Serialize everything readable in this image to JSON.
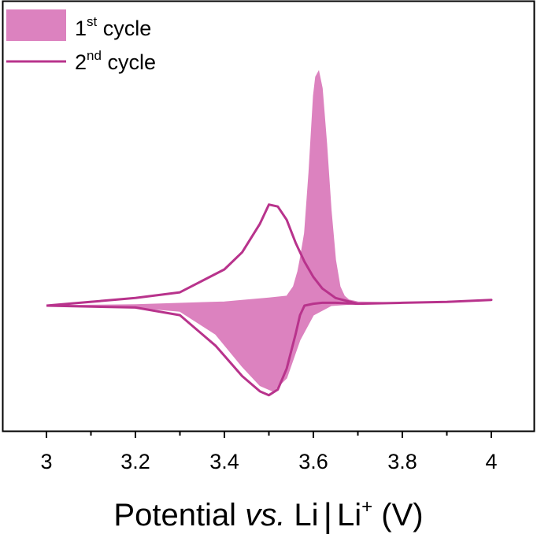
{
  "chart_data": {
    "type": "line",
    "title": "",
    "xlabel": {
      "prefix": "Potential ",
      "italic": "vs.",
      "middle": " Li",
      "suffix_base": "Li",
      "suffix_sup": "+",
      "suffix_end": " (V)"
    },
    "ylabel": "",
    "xlim": [
      3,
      4
    ],
    "ylim": [
      -1.0,
      1.0
    ],
    "grid": false,
    "legend_position": "top-left",
    "x_ticks": [
      "3",
      "3.2",
      "3.4",
      "3.6",
      "3.8",
      "4"
    ],
    "x_tick_values": [
      3,
      3.2,
      3.4,
      3.6,
      3.8,
      4
    ],
    "colors": {
      "cycle1": "#dc82bf",
      "cycle2": "#b8338c"
    },
    "series": [
      {
        "name_base": "1",
        "name_sup": "st",
        "name_end": " cycle",
        "style": "filled",
        "upper": {
          "x": [
            3.0,
            3.2,
            3.4,
            3.5,
            3.54,
            3.555,
            3.565,
            3.57,
            3.58,
            3.59,
            3.6,
            3.605,
            3.612,
            3.62,
            3.63,
            3.64,
            3.65,
            3.66,
            3.67,
            3.68,
            3.7,
            3.8,
            4.0
          ],
          "y": [
            0.0,
            0.005,
            0.02,
            0.04,
            0.05,
            0.1,
            0.18,
            0.24,
            0.38,
            0.7,
            1.1,
            1.2,
            1.23,
            1.14,
            0.85,
            0.5,
            0.24,
            0.1,
            0.05,
            0.03,
            0.02,
            0.015,
            0.03
          ]
        },
        "lower": {
          "x": [
            3.0,
            3.2,
            3.3,
            3.38,
            3.44,
            3.48,
            3.51,
            3.54,
            3.57,
            3.6,
            3.64,
            3.7,
            3.8,
            4.0
          ],
          "y": [
            0.0,
            -0.01,
            -0.03,
            -0.15,
            -0.32,
            -0.42,
            -0.45,
            -0.38,
            -0.18,
            -0.05,
            0.0,
            0.01,
            0.015,
            0.03
          ]
        }
      },
      {
        "name_base": "2",
        "name_sup": "nd",
        "name_end": " cycle",
        "style": "line",
        "x": [
          3.0,
          3.2,
          3.3,
          3.38,
          3.44,
          3.48,
          3.5,
          3.52,
          3.54,
          3.56,
          3.57,
          3.58,
          3.6,
          3.62,
          3.65,
          3.7,
          3.8,
          3.9,
          4.0,
          3.9,
          3.8,
          3.7,
          3.65,
          3.62,
          3.6,
          3.58,
          3.56,
          3.54,
          3.52,
          3.5,
          3.48,
          3.44,
          3.4,
          3.35,
          3.3,
          3.2,
          3.0
        ],
        "y": [
          0.0,
          -0.01,
          -0.05,
          -0.21,
          -0.37,
          -0.45,
          -0.47,
          -0.44,
          -0.33,
          -0.15,
          -0.05,
          0.0,
          0.01,
          0.015,
          0.015,
          0.01,
          0.015,
          0.02,
          0.03,
          0.02,
          0.015,
          0.01,
          0.04,
          0.09,
          0.15,
          0.23,
          0.33,
          0.45,
          0.52,
          0.53,
          0.43,
          0.28,
          0.19,
          0.13,
          0.07,
          0.04,
          0.0
        ]
      }
    ]
  }
}
